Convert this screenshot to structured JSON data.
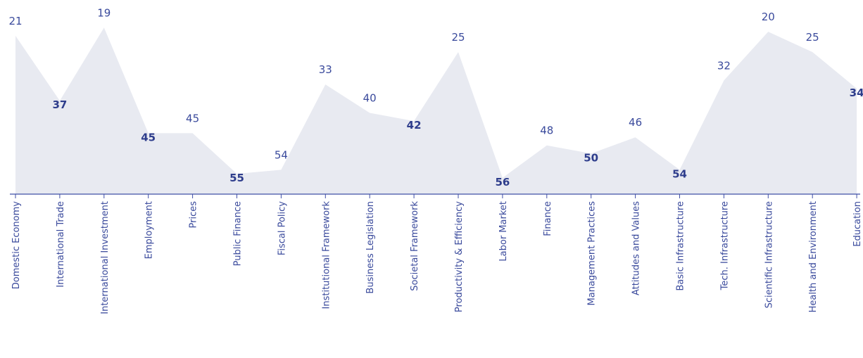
{
  "chart_data": {
    "type": "area",
    "categories": [
      "Domestic Economy",
      "International Trade",
      "International Investment",
      "Employment",
      "Prices",
      "Public Finance",
      "Fiscal Policy",
      "Institutional Framework",
      "Business Legislation",
      "Societal Framework",
      "Productivity & Efficiency",
      "Labor Market",
      "Finance",
      "Management Practices",
      "Attitudes and Values",
      "Basic Infrastructure",
      "Tech. Infrastructure",
      "Scientific Infrastructure",
      "Health and Environment",
      "Education"
    ],
    "values": [
      21,
      37,
      19,
      45,
      45,
      55,
      54,
      33,
      40,
      42,
      25,
      56,
      48,
      50,
      46,
      54,
      32,
      20,
      25,
      34
    ],
    "data_labels": [
      "21",
      "37",
      "19",
      "45",
      "45",
      "55",
      "54",
      "33",
      "40",
      "42",
      "25",
      "56",
      "48",
      "50",
      "46",
      "54",
      "32",
      "20",
      "25",
      "34"
    ],
    "ylim": [
      60,
      16
    ],
    "y_reversed": true,
    "grid": false,
    "colors": {
      "area": "#e8eaf1",
      "axis": "#3f4fa6",
      "text": "#3a4a9c"
    }
  }
}
